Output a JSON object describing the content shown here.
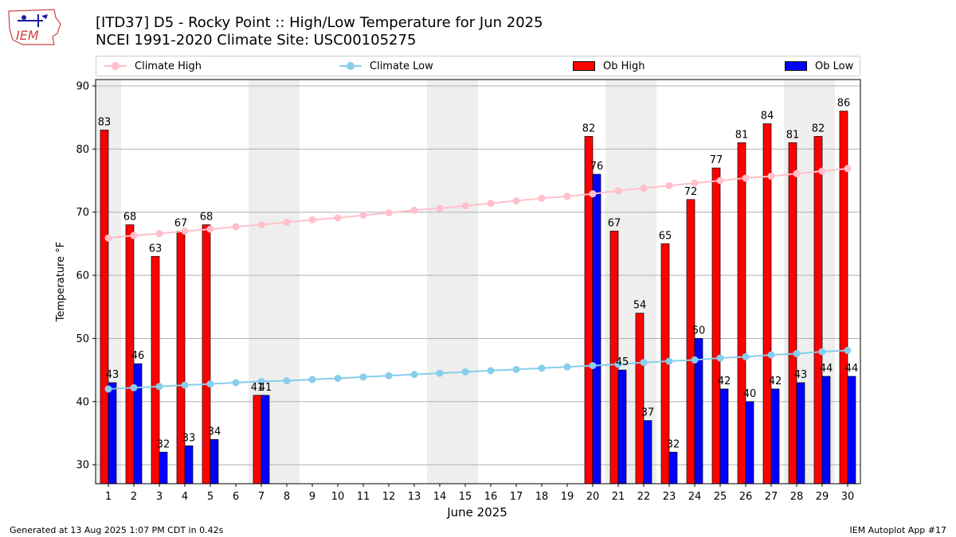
{
  "header": {
    "logo_text": "IEM",
    "title_line1": "[ITD37] D5 - Rocky Point  :: High/Low Temperature for Jun 2025",
    "title_line2": "NCEI 1991-2020 Climate Site: USC00105275"
  },
  "legend": {
    "climate_high": "Climate High",
    "climate_low": "Climate Low",
    "ob_high": "Ob High",
    "ob_low": "Ob Low"
  },
  "footer": {
    "left": "Generated at 13 Aug 2025 1:07 PM CDT in 0.42s",
    "right": "IEM Autoplot App #17"
  },
  "colors": {
    "ob_high": "#ff0000",
    "ob_low": "#0000ff",
    "climate_high": "#ffc0cb",
    "climate_low": "#87ceeb",
    "weekend_shade": "#eeeeee"
  },
  "chart_data": {
    "type": "bar",
    "xlabel": "June 2025",
    "ylabel": "Temperature °F",
    "ylim": [
      27,
      91
    ],
    "yticks": [
      30,
      40,
      50,
      60,
      70,
      80,
      90
    ],
    "grid": "horizontal",
    "legend_position": "top",
    "days": [
      1,
      2,
      3,
      4,
      5,
      6,
      7,
      8,
      9,
      10,
      11,
      12,
      13,
      14,
      15,
      16,
      17,
      18,
      19,
      20,
      21,
      22,
      23,
      24,
      25,
      26,
      27,
      28,
      29,
      30
    ],
    "shaded_days": [
      1,
      7,
      8,
      14,
      15,
      21,
      22,
      28,
      29
    ],
    "series": [
      {
        "name": "Ob High",
        "kind": "bar",
        "values": [
          83,
          68,
          63,
          67,
          68,
          null,
          41,
          null,
          null,
          null,
          null,
          null,
          null,
          null,
          null,
          null,
          null,
          null,
          null,
          82,
          67,
          54,
          65,
          72,
          77,
          81,
          84,
          81,
          82,
          86
        ],
        "labels": [
          "83",
          "68",
          "63",
          "67",
          "68",
          "",
          "41",
          "",
          "",
          "",
          "",
          "",
          "",
          "",
          "",
          "",
          "",
          "",
          "",
          "82",
          "67",
          "54",
          "65",
          "72",
          "77",
          "81",
          "84",
          "81",
          "82",
          "86"
        ]
      },
      {
        "name": "Ob Low",
        "kind": "bar",
        "values": [
          43,
          46,
          32,
          33,
          34,
          null,
          41,
          null,
          null,
          null,
          null,
          null,
          null,
          null,
          null,
          null,
          null,
          null,
          null,
          76,
          45,
          37,
          32,
          50,
          42,
          40,
          42,
          43,
          44,
          44
        ],
        "labels": [
          "43",
          "46",
          "32",
          "33",
          "34",
          "",
          "41",
          "",
          "",
          "",
          "",
          "",
          "",
          "",
          "",
          "",
          "",
          "",
          "",
          "76",
          "45",
          "37",
          "32",
          "50",
          "42",
          "40",
          "42",
          "43",
          "44",
          "44"
        ]
      },
      {
        "name": "Climate High",
        "kind": "line",
        "values": [
          65.9,
          66.3,
          66.6,
          67.0,
          67.3,
          67.7,
          68.0,
          68.4,
          68.8,
          69.1,
          69.5,
          69.9,
          70.3,
          70.6,
          71.0,
          71.4,
          71.8,
          72.2,
          72.5,
          72.9,
          73.4,
          73.8,
          74.2,
          74.6,
          75.0,
          75.4,
          75.7,
          76.1,
          76.5,
          76.9
        ]
      },
      {
        "name": "Climate Low",
        "kind": "line",
        "values": [
          42.0,
          42.2,
          42.4,
          42.6,
          42.8,
          43.0,
          43.2,
          43.3,
          43.5,
          43.7,
          43.9,
          44.1,
          44.3,
          44.5,
          44.7,
          44.9,
          45.1,
          45.3,
          45.5,
          45.7,
          45.9,
          46.2,
          46.4,
          46.6,
          46.9,
          47.1,
          47.4,
          47.6,
          47.9,
          48.1
        ]
      }
    ]
  }
}
